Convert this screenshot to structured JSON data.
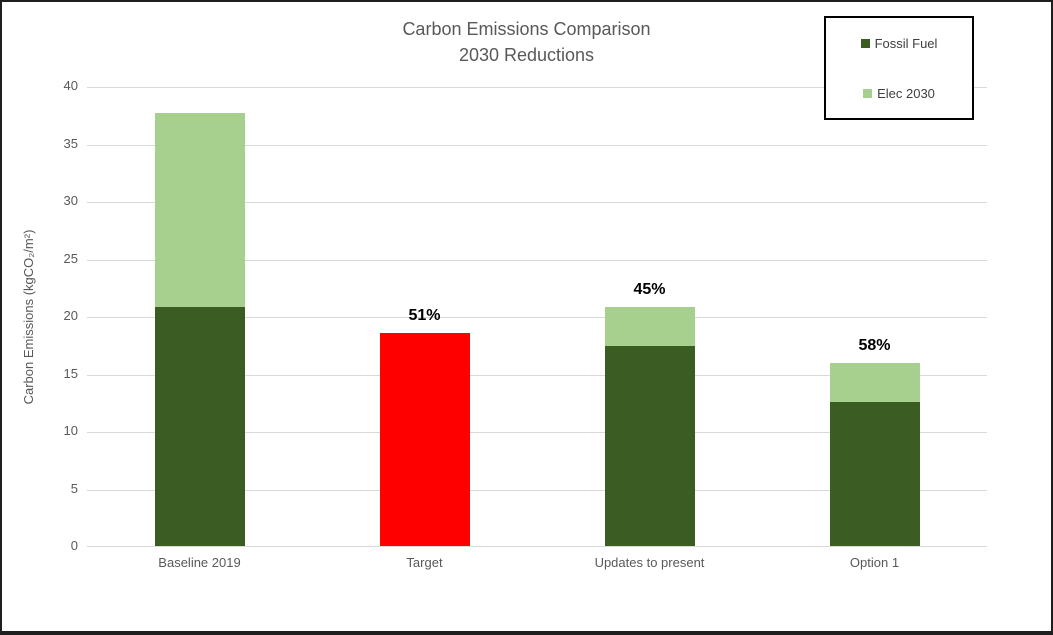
{
  "chart_data": {
    "type": "bar",
    "stacked": true,
    "title": "Carbon Emissions Comparison",
    "subtitle": "2030 Reductions",
    "xlabel": "",
    "ylabel": "Carbon Emissions (kgCO₂/m²)",
    "ylim": [
      0,
      40
    ],
    "yticks": [
      0,
      5,
      10,
      15,
      20,
      25,
      30,
      35,
      40
    ],
    "grid": true,
    "legend": {
      "position": "top-right",
      "entries": [
        {
          "label": "Fossil Fuel",
          "color": "#3B5C23"
        },
        {
          "label": "Elec 2030",
          "color": "#A7D08E"
        }
      ]
    },
    "categories": [
      "Baseline 2019",
      "Target",
      "Updates to present",
      "Option 1"
    ],
    "bars": [
      {
        "category": "Baseline 2019",
        "annotation": "",
        "segments": [
          {
            "series": "Fossil Fuel",
            "value": 20.8,
            "color": "#3B5C23"
          },
          {
            "series": "Elec 2030",
            "value": 16.9,
            "color": "#A7D08E"
          }
        ]
      },
      {
        "category": "Target",
        "annotation": "51%",
        "segments": [
          {
            "series": "Target",
            "value": 18.5,
            "color": "#FF0000"
          }
        ]
      },
      {
        "category": "Updates to present",
        "annotation": "45%",
        "segments": [
          {
            "series": "Fossil Fuel",
            "value": 17.4,
            "color": "#3B5C23"
          },
          {
            "series": "Elec 2030",
            "value": 3.4,
            "color": "#A7D08E"
          }
        ]
      },
      {
        "category": "Option 1",
        "annotation": "58%",
        "segments": [
          {
            "series": "Fossil Fuel",
            "value": 12.5,
            "color": "#3B5C23"
          },
          {
            "series": "Elec 2030",
            "value": 3.4,
            "color": "#A7D08E"
          }
        ]
      }
    ],
    "colors": {
      "grid": "#D9D9D9",
      "axis_text": "#595959",
      "title_text": "#595959",
      "annotation_text": "#000000"
    }
  }
}
